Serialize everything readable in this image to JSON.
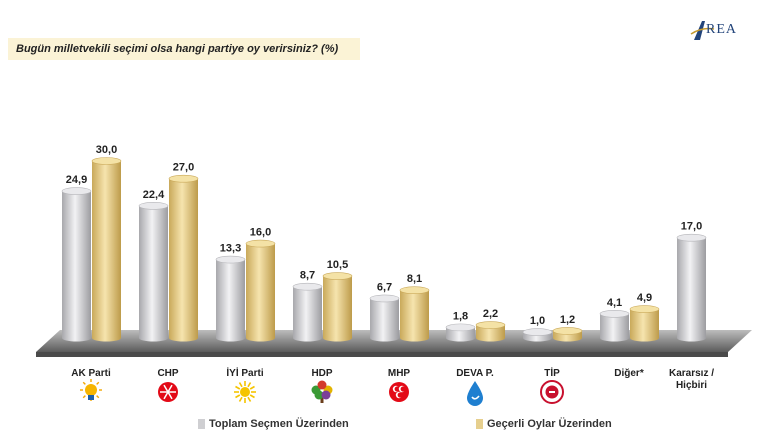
{
  "header": {
    "question": "Bugün milletvekili seçimi olsa hangi partiye oy verirsiniz? (%)",
    "logo_text": "REA"
  },
  "colors": {
    "series1": "#cfcfd2",
    "series2": "#e6cf8e",
    "floor": "#6a6a6a"
  },
  "chart_data": {
    "type": "bar",
    "title": "Bugün milletvekili seçimi olsa hangi partiye oy verirsiniz? (%)",
    "categories": [
      "AK Parti",
      "CHP",
      "İYİ Parti",
      "HDP",
      "MHP",
      "DEVA P.",
      "TİP",
      "Diğer*",
      "Kararsız / Hiçbiri"
    ],
    "series": [
      {
        "name": "Toplam Seçmen Üzerinden",
        "values": [
          24.9,
          22.4,
          13.3,
          8.7,
          6.7,
          1.8,
          1.0,
          4.1,
          17.0
        ],
        "labels": [
          "24,9",
          "22,4",
          "13,3",
          "8,7",
          "6,7",
          "1,8",
          "1,0",
          "4,1",
          "17,0"
        ]
      },
      {
        "name": "Geçerli Oylar Üzerinden",
        "values": [
          30.0,
          27.0,
          16.0,
          10.5,
          8.1,
          2.2,
          1.2,
          4.9,
          null
        ],
        "labels": [
          "30,0",
          "27,0",
          "16,0",
          "10,5",
          "8,1",
          "2,2",
          "1,2",
          "4,9",
          ""
        ]
      }
    ],
    "icons": [
      "lightbulb-icon",
      "six-arrows-icon",
      "sun-icon",
      "tree-icon",
      "crescents-icon",
      "droplet-icon",
      "tip-seal-icon",
      "",
      ""
    ],
    "ylim": [
      0,
      30
    ],
    "legend_position": "bottom",
    "grid": false
  }
}
